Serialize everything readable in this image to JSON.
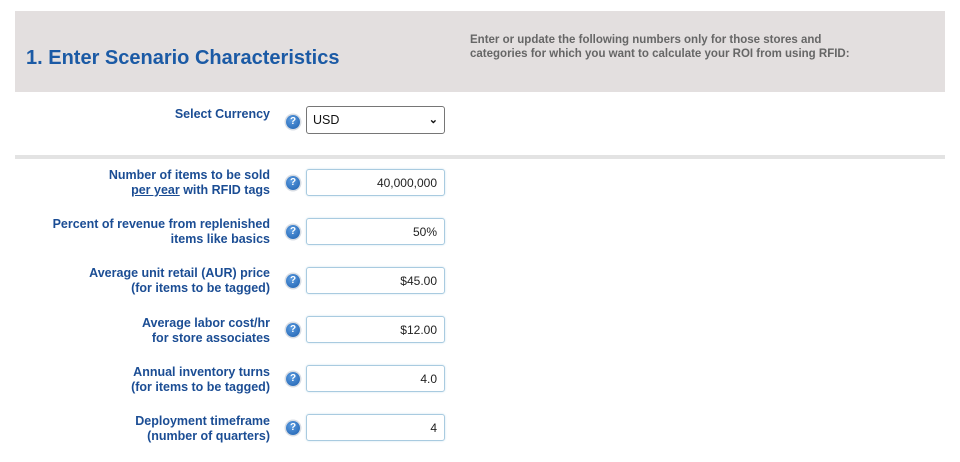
{
  "header": {
    "title": "1. Enter Scenario Characteristics",
    "intro": "Enter or update the following numbers only for those stores and categories for which you want to calculate your ROI from using RFID:"
  },
  "currency": {
    "label": "Select Currency",
    "value": "USD",
    "help_icon": "question-circle-icon"
  },
  "fields": [
    {
      "label_line1": "Number of items to be sold",
      "label_line2_underlined": "per year",
      "label_line2_rest": " with RFID tags",
      "value": "40,000,000"
    },
    {
      "label_line1": "Percent of revenue from replenished",
      "label_line2": "items like basics",
      "value": "50%"
    },
    {
      "label_line1": "Average unit retail (AUR) price",
      "label_line2": "(for items to be tagged)",
      "value": "$45.00"
    },
    {
      "label_line1": "Average labor cost/hr",
      "label_line2": "for store associates",
      "value": "$12.00"
    },
    {
      "label_line1": "Annual inventory turns",
      "label_line2": "(for items to be tagged)",
      "value": "4.0"
    },
    {
      "label_line1": "Deployment timeframe",
      "label_line2": "(number of quarters)",
      "value": "4"
    }
  ],
  "colors": {
    "header_bg": "#e3dfdf",
    "title": "#1b5aa5",
    "label": "#1b4d94",
    "help_icon": "#1d5fae"
  }
}
